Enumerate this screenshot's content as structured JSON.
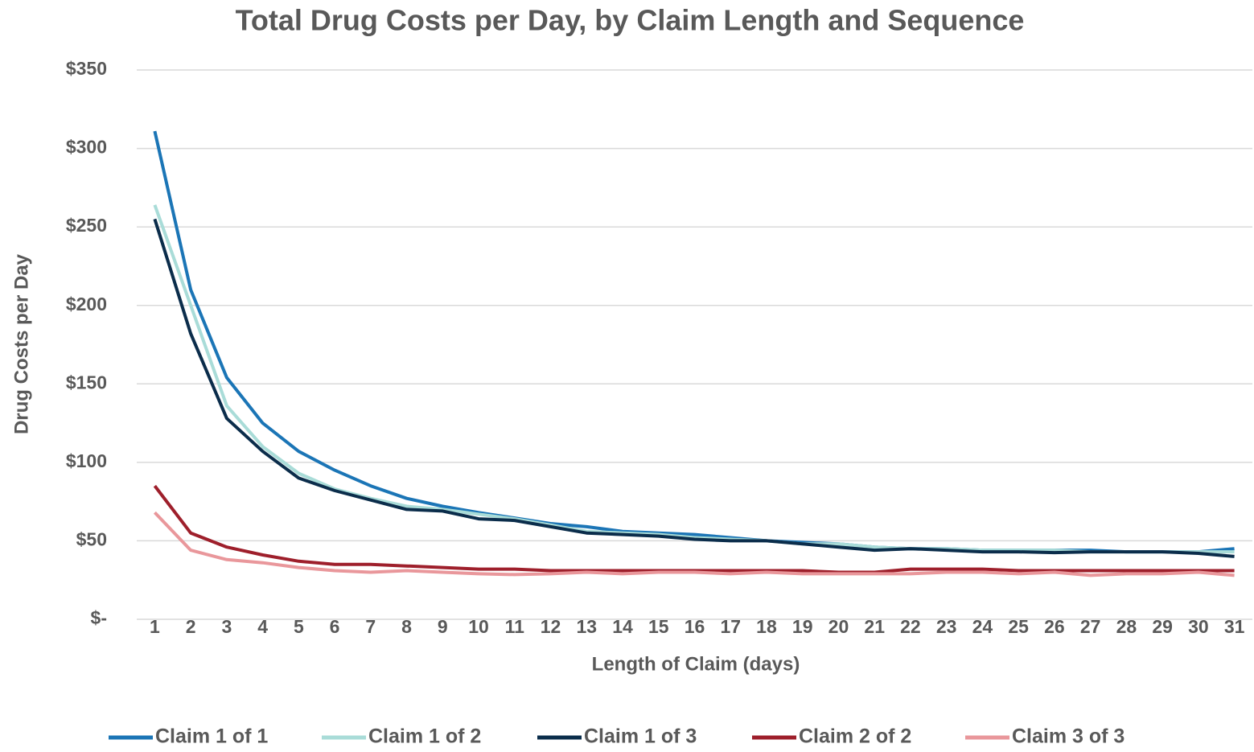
{
  "chart_data": {
    "type": "line",
    "title": "Total Drug Costs per Day, by Claim Length and Sequence",
    "x_label": "Length of Claim (days)",
    "y_label": "Drug Costs per Day",
    "categories": [
      "1",
      "2",
      "3",
      "4",
      "5",
      "6",
      "7",
      "8",
      "9",
      "10",
      "11",
      "12",
      "13",
      "14",
      "15",
      "16",
      "17",
      "18",
      "19",
      "20",
      "21",
      "22",
      "23",
      "24",
      "25",
      "26",
      "27",
      "28",
      "29",
      "30",
      "31"
    ],
    "series": [
      {
        "name": "Claim 1 of 1",
        "color": "#1b75b6",
        "values": [
          311,
          210,
          154,
          125,
          107,
          95,
          85,
          77,
          72,
          68,
          64.5,
          61,
          59,
          56,
          55,
          54,
          52,
          50,
          49,
          48,
          46,
          45,
          45,
          44,
          44,
          44,
          44,
          43,
          43,
          43,
          45
        ]
      },
      {
        "name": "Claim 1 of 2",
        "color": "#a9dcd8",
        "values": [
          264,
          200,
          136,
          110,
          93,
          83,
          77,
          72,
          70,
          67,
          64,
          60,
          56,
          55,
          54,
          52,
          51,
          50,
          48,
          48,
          46,
          45,
          45,
          44,
          44,
          44,
          43,
          43,
          43,
          43,
          43
        ]
      },
      {
        "name": "Claim 1 of 3",
        "color": "#0b2d4b",
        "values": [
          255,
          182,
          128,
          107,
          90,
          82,
          76,
          70,
          69,
          64,
          63,
          59,
          55,
          54,
          53,
          51,
          50,
          50,
          48,
          46,
          44,
          45,
          44,
          43,
          43,
          42.5,
          43,
          43,
          43,
          42,
          40
        ]
      },
      {
        "name": "Claim 2 of 2",
        "color": "#9e1f2b",
        "values": [
          85,
          55,
          46,
          41,
          37,
          35,
          35,
          34,
          33,
          32,
          32,
          31,
          31,
          31,
          31,
          31,
          31,
          31,
          31,
          30,
          30,
          32,
          32,
          32,
          31,
          31,
          31,
          31,
          31,
          31,
          31
        ]
      },
      {
        "name": "Claim 3 of 3",
        "color": "#e9979b",
        "values": [
          68,
          44,
          38,
          36,
          33,
          31,
          30,
          31,
          30,
          29,
          28.5,
          29,
          30,
          29,
          30,
          30,
          29,
          30,
          29,
          29,
          29,
          29,
          30,
          30,
          29,
          30,
          28,
          29,
          29,
          30,
          28
        ]
      }
    ],
    "ylim": [
      0,
      350
    ],
    "yticks": [
      {
        "value": 0,
        "label": "$-"
      },
      {
        "value": 50,
        "label": "$50"
      },
      {
        "value": 100,
        "label": "$100"
      },
      {
        "value": 150,
        "label": "$150"
      },
      {
        "value": 200,
        "label": "$200"
      },
      {
        "value": 250,
        "label": "$250"
      },
      {
        "value": 300,
        "label": "$300"
      },
      {
        "value": 350,
        "label": "$350"
      }
    ],
    "grid": true,
    "legend": "bottom"
  }
}
